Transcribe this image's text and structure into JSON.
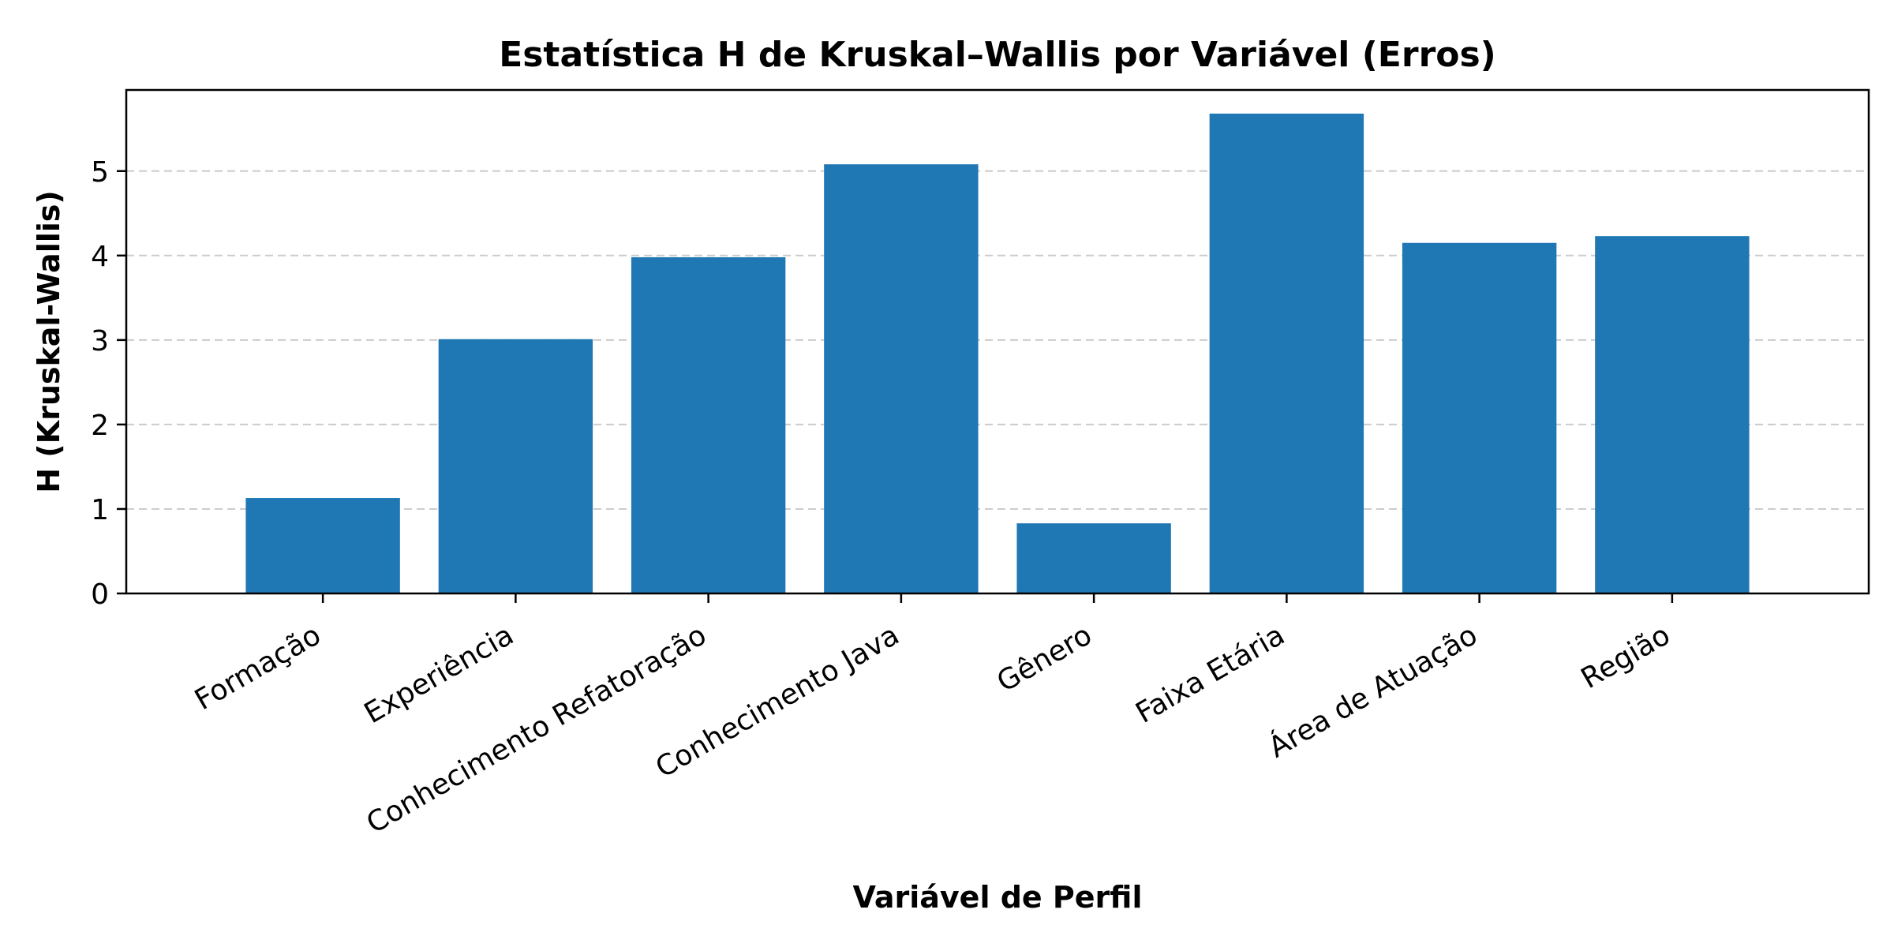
{
  "chart_data": {
    "type": "bar",
    "title": "Estatística H de Kruskal–Wallis por Variável (Erros)",
    "xlabel": "Variável de Perfil",
    "ylabel": "H (Kruskal-Wallis)",
    "categories": [
      "Formação",
      "Experiência",
      "Conhecimento Refatoração",
      "Conhecimento Java",
      "Gênero",
      "Faixa Etária",
      "Área de Atuação",
      "Região"
    ],
    "values": [
      1.13,
      3.01,
      3.98,
      5.08,
      0.83,
      5.68,
      4.15,
      4.23
    ],
    "ylim": [
      0,
      5.96
    ],
    "yticks": [
      0,
      1,
      2,
      3,
      4,
      5
    ],
    "grid": "y-dashed",
    "bar_color": "#1f77b4"
  }
}
